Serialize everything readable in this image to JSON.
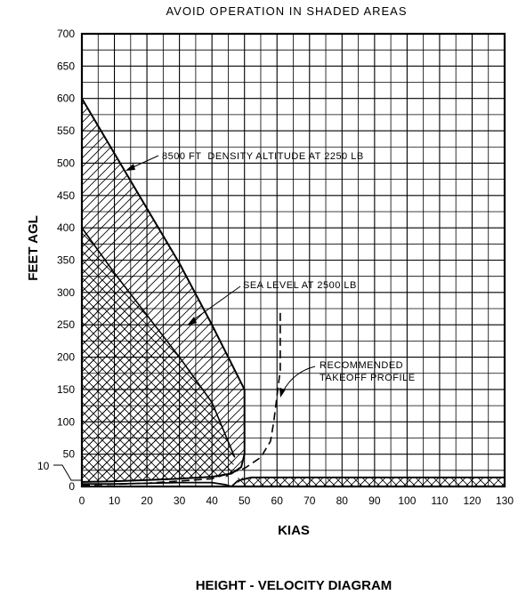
{
  "chart_data": {
    "type": "area",
    "title": "AVOID OPERATION IN SHADED AREAS",
    "caption": "HEIGHT - VELOCITY DIAGRAM",
    "xlabel": "KIAS",
    "ylabel": "FEET AGL",
    "xlim": [
      0,
      130
    ],
    "ylim": [
      0,
      700
    ],
    "grid": true,
    "x_ticks": [
      "0",
      "10",
      "20",
      "30",
      "40",
      "50",
      "60",
      "70",
      "80",
      "90",
      "100",
      "110",
      "120",
      "130"
    ],
    "y_ticks": [
      "0",
      "50",
      "100",
      "150",
      "200",
      "250",
      "300",
      "350",
      "400",
      "450",
      "500",
      "550",
      "600",
      "650",
      "700"
    ],
    "y_extra_tick": "10",
    "series": [
      {
        "name": "8500 FT DENSITY ALTITUDE AT 2250 LB",
        "style": "solid",
        "x": [
          0,
          10,
          20,
          30,
          40,
          50,
          50,
          49,
          46,
          40,
          30,
          20,
          10,
          0
        ],
        "y": [
          600,
          515,
          430,
          345,
          250,
          150,
          50,
          30,
          20,
          15,
          12,
          10,
          8,
          7
        ]
      },
      {
        "name": "SEA LEVEL AT 2500 LB",
        "style": "solid",
        "x": [
          0,
          10,
          20,
          30,
          40,
          47
        ],
        "y": [
          400,
          330,
          265,
          200,
          130,
          45
        ]
      },
      {
        "name": "RECOMMENDED TAKEOFF PROFILE",
        "style": "dashed",
        "x": [
          0,
          20,
          40,
          50,
          55,
          58,
          59,
          60,
          61,
          61
        ],
        "y": [
          2,
          5,
          12,
          28,
          45,
          70,
          100,
          140,
          180,
          270
        ]
      },
      {
        "name": "",
        "style": "low-speed boundary",
        "x": [
          0,
          10,
          20,
          30,
          40,
          44,
          46,
          48,
          52,
          130
        ],
        "y": [
          4,
          4,
          5,
          6,
          6,
          3,
          0,
          9,
          14,
          14
        ]
      }
    ],
    "shaded_regions": [
      {
        "region": "upper-left",
        "pattern": "single-hatch",
        "between": [
          "8500 FT DENSITY ALTITUDE AT 2250 LB",
          "SEA LEVEL AT 2500 LB"
        ]
      },
      {
        "region": "upper-left",
        "pattern": "cross-hatch",
        "bounded_by": "SEA LEVEL AT 2500 LB",
        "top": 400
      },
      {
        "region": "low-altitude high-speed",
        "pattern": "cross-hatch",
        "x_range": [
          48,
          130
        ],
        "y_range": [
          0,
          14
        ]
      }
    ],
    "annotations": [
      {
        "text": "8500 FT  DENSITY ALTITUDE AT 2250 LB",
        "points_to": [
          13,
          480
        ]
      },
      {
        "text": "SEA LEVEL AT 2500 LB",
        "points_to": [
          33,
          240
        ]
      },
      {
        "text_lines": [
          "RECOMMENDED",
          "TAKEOFF PROFILE"
        ],
        "points_to": [
          60,
          130
        ]
      }
    ]
  }
}
